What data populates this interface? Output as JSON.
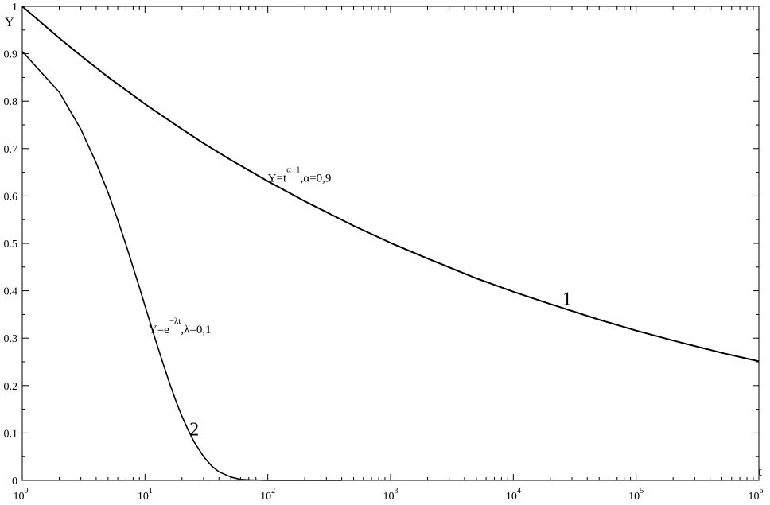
{
  "chart_data": {
    "type": "line",
    "xlabel": "t",
    "ylabel": "Y",
    "xscale": "log",
    "xlim": [
      1,
      1000000
    ],
    "ylim": [
      0,
      1
    ],
    "grid": false,
    "x_ticks": [
      {
        "value": 1,
        "base": "10",
        "exp": "0"
      },
      {
        "value": 10,
        "base": "10",
        "exp": "1"
      },
      {
        "value": 100,
        "base": "10",
        "exp": "2"
      },
      {
        "value": 1000,
        "base": "10",
        "exp": "3"
      },
      {
        "value": 10000,
        "base": "10",
        "exp": "4"
      },
      {
        "value": 100000,
        "base": "10",
        "exp": "5"
      },
      {
        "value": 1000000,
        "base": "10",
        "exp": "6"
      }
    ],
    "y_ticks": [
      {
        "value": 0,
        "label": "0"
      },
      {
        "value": 0.1,
        "label": "0.1"
      },
      {
        "value": 0.2,
        "label": "0.2"
      },
      {
        "value": 0.3,
        "label": "0.3"
      },
      {
        "value": 0.4,
        "label": "0.4"
      },
      {
        "value": 0.5,
        "label": "0.5"
      },
      {
        "value": 0.6,
        "label": "0.6"
      },
      {
        "value": 0.7,
        "label": "0.7"
      },
      {
        "value": 0.8,
        "label": "0.8"
      },
      {
        "value": 0.9,
        "label": "0.9"
      },
      {
        "value": 1,
        "label": "1"
      }
    ],
    "series": [
      {
        "id": "1",
        "color": "#000000",
        "x": [
          1,
          2,
          3,
          5,
          10,
          20,
          30,
          50,
          100,
          200,
          500,
          1000,
          2000,
          5000,
          10000,
          20000,
          50000,
          100000,
          200000,
          500000,
          1000000
        ],
        "y": [
          1,
          0.933,
          0.896,
          0.851,
          0.794,
          0.741,
          0.711,
          0.676,
          0.631,
          0.589,
          0.537,
          0.501,
          0.468,
          0.426,
          0.398,
          0.372,
          0.339,
          0.316,
          0.295,
          0.269,
          0.251
        ]
      },
      {
        "id": "2",
        "color": "#000000",
        "x": [
          1,
          2,
          3,
          4,
          5,
          6,
          7,
          8,
          9,
          10,
          12,
          14,
          16,
          18,
          20,
          22,
          25,
          30,
          35,
          40,
          50,
          60,
          70,
          100,
          200,
          400
        ],
        "y": [
          0.905,
          0.819,
          0.741,
          0.67,
          0.607,
          0.549,
          0.497,
          0.449,
          0.407,
          0.368,
          0.301,
          0.247,
          0.202,
          0.165,
          0.135,
          0.111,
          0.082,
          0.05,
          0.03,
          0.018,
          0.007,
          0.002,
          0.001,
          0.0,
          0.0,
          0.0
        ]
      }
    ],
    "annotations": [
      {
        "id": "formula-1",
        "base": "Y=t",
        "sup": "α−1",
        "rest": ",α=0,9",
        "x": 100,
        "y": 0.63
      },
      {
        "id": "formula-2",
        "base": "Y=e",
        "sup": "−λt",
        "rest": ",λ=0,1",
        "x": 10.7,
        "y": 0.31
      },
      {
        "id": "curve-label-1",
        "text": "1",
        "x": 25000,
        "y": 0.37
      },
      {
        "id": "curve-label-2",
        "text": "2",
        "x": 23,
        "y": 0.095
      }
    ]
  }
}
